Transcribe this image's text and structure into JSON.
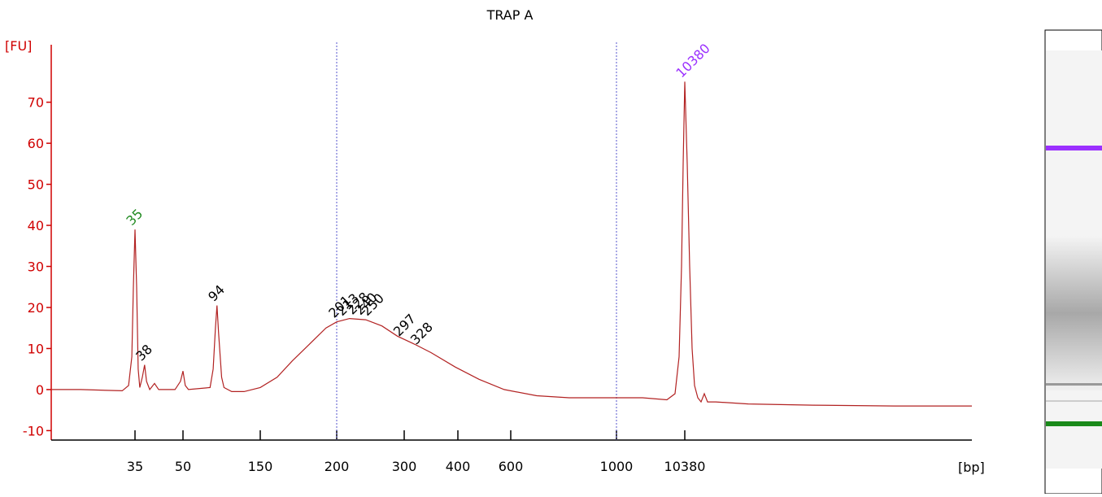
{
  "chart_data": {
    "type": "line",
    "title": "TRAP A",
    "y_label": "[FU]",
    "x_label": "[bp]",
    "ylim": [
      -12.3,
      84
    ],
    "yticks": [
      -10,
      0,
      10,
      20,
      30,
      40,
      50,
      60,
      70
    ],
    "xlim": [
      9,
      49800
    ],
    "xticks": [
      35,
      50,
      150,
      200,
      300,
      400,
      600,
      1000,
      10380
    ],
    "marker_lines": [
      200,
      1000
    ],
    "series": [
      {
        "color": "#b22222",
        "x": [
          9,
          18,
          31,
          33,
          34,
          34.5,
          35,
          35.5,
          36,
          36.5,
          37.3,
          38,
          38.6,
          39.6,
          41.1,
          42.4,
          47.5,
          49.2,
          50,
          53,
          57,
          85,
          89,
          92,
          94,
          96,
          100,
          103,
          113,
          129,
          150,
          161,
          171,
          182,
          193,
          200,
          219,
          243,
          267,
          290,
          320,
          350,
          395,
          480,
          575,
          698,
          821,
          1000,
          4574,
          7924,
          9041,
          9600,
          9933,
          10157,
          10380,
          10715,
          11050,
          11385,
          11720,
          12170,
          12610,
          13060,
          13510,
          14630,
          19100,
          28000,
          39200,
          49800
        ],
        "values": [
          0,
          0,
          -0.3,
          1,
          8,
          25,
          39,
          25,
          5,
          0.5,
          3,
          6,
          2,
          0,
          1.5,
          0,
          0,
          2,
          4.5,
          1,
          0,
          0.5,
          5,
          15,
          20.5,
          14,
          3,
          0.5,
          -0.5,
          -0.5,
          0.5,
          3,
          7,
          11,
          15,
          16.5,
          17.3,
          17,
          15.5,
          13,
          11,
          9,
          5.5,
          2.5,
          0,
          -1.5,
          -2,
          -2,
          -2,
          -2.5,
          -1,
          8,
          30,
          55,
          75,
          55,
          30,
          10,
          1,
          -2,
          -3,
          -1,
          -3,
          -3,
          -3.5,
          -3.8,
          -4,
          -4
        ]
      }
    ],
    "peaks": {
      "x": [
        35,
        38,
        94,
        201,
        213,
        228,
        240,
        250,
        297,
        328,
        10380
      ],
      "y": [
        39,
        6,
        20.5,
        16.5,
        17,
        17.3,
        17.2,
        17,
        12,
        10,
        75
      ],
      "colors": [
        "#228b22",
        "#000000",
        "#000000",
        "#000000",
        "#000000",
        "#000000",
        "#000000",
        "#000000",
        "#000000",
        "#000000",
        "#9b30ff"
      ]
    }
  }
}
